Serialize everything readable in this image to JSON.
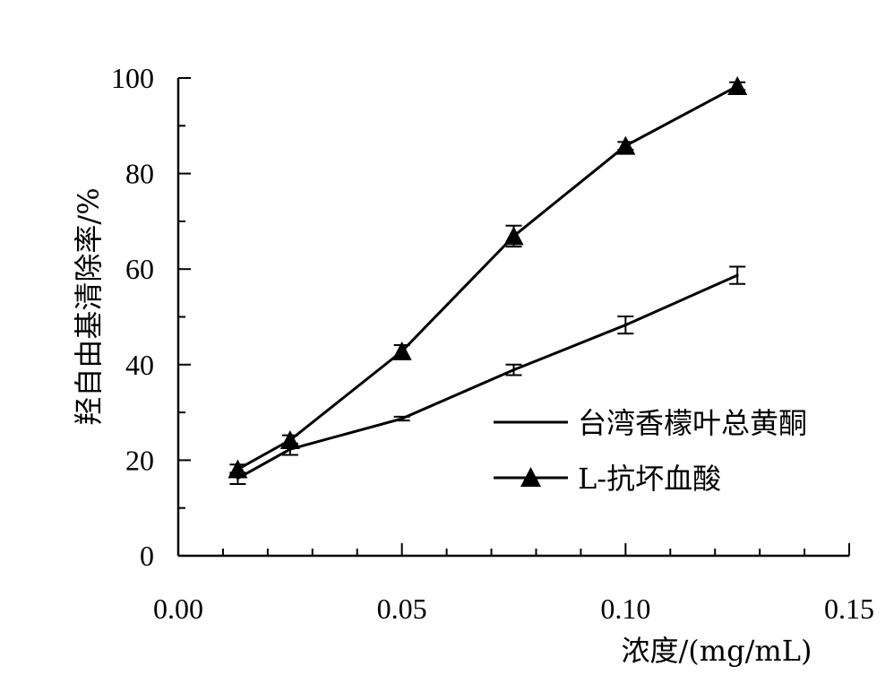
{
  "chart_data": {
    "type": "line",
    "xlabel": "浓度/(mg/mL)",
    "ylabel": "羟自由基清除率/%",
    "xlim": [
      0,
      0.15
    ],
    "ylim": [
      0,
      100
    ],
    "x_ticks": [
      "0.00",
      "0.05",
      "0.10",
      "0.15"
    ],
    "y_ticks": [
      "0",
      "20",
      "40",
      "60",
      "80",
      "100"
    ],
    "grid": false,
    "legend_position": "right",
    "series": [
      {
        "name": "台湾香檬叶总黄酮",
        "marker": "none",
        "x": [
          0.0133,
          0.025,
          0.05,
          0.075,
          0.1,
          0.125
        ],
        "y": [
          16.2,
          22.3,
          28.7,
          38.9,
          48.3,
          58.7
        ],
        "err": [
          1.2,
          1.2,
          0.4,
          1.1,
          1.8,
          1.8
        ]
      },
      {
        "name": "L-抗坏血酸",
        "marker": "triangle",
        "x": [
          0.0133,
          0.025,
          0.05,
          0.075,
          0.1,
          0.125
        ],
        "y": [
          18.1,
          24.2,
          42.8,
          66.9,
          85.8,
          98.3
        ],
        "err": [
          1.0,
          1.0,
          1.3,
          2.2,
          0.8,
          0.8
        ]
      }
    ]
  }
}
